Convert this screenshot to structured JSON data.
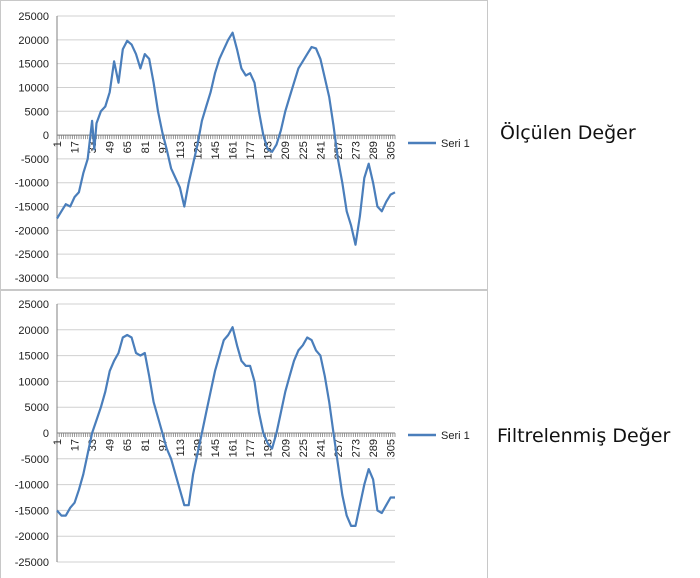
{
  "labels": {
    "top": "Ölçülen Değer",
    "bottom": "Filtrelenmiş Değer"
  },
  "colors": {
    "series": "#4a7ebb",
    "grid": "#d0d0d0",
    "axis": "#808080",
    "frame": "#c8c8c8"
  },
  "chart_data": [
    {
      "type": "line",
      "title": "",
      "xlabel": "",
      "ylabel": "",
      "ylim": [
        -30000,
        25000
      ],
      "y_ticks": [
        "25000",
        "20000",
        "15000",
        "10000",
        "5000",
        "0",
        "-5000",
        "-10000",
        "-15000",
        "-20000",
        "-25000",
        "-30000"
      ],
      "x_tick_labels": [
        "1",
        "17",
        "33",
        "49",
        "65",
        "81",
        "97",
        "113",
        "129",
        "145",
        "161",
        "177",
        "193",
        "209",
        "225",
        "241",
        "257",
        "273",
        "289",
        "305"
      ],
      "grid": true,
      "legend_position": "right",
      "series": [
        {
          "name": "Seri 1",
          "x": [
            1,
            5,
            9,
            13,
            17,
            21,
            25,
            29,
            33,
            35,
            37,
            41,
            45,
            49,
            53,
            57,
            61,
            65,
            69,
            73,
            77,
            81,
            85,
            89,
            93,
            97,
            101,
            105,
            109,
            113,
            117,
            121,
            125,
            129,
            133,
            137,
            141,
            145,
            149,
            153,
            157,
            161,
            165,
            169,
            173,
            177,
            181,
            185,
            189,
            193,
            197,
            201,
            205,
            209,
            213,
            217,
            221,
            225,
            229,
            233,
            237,
            241,
            245,
            249,
            253,
            257,
            261,
            265,
            269,
            273,
            277,
            281,
            285,
            289,
            293,
            297,
            301,
            305,
            309
          ],
          "values": [
            -17500,
            -16000,
            -14500,
            -15000,
            -13000,
            -12000,
            -8000,
            -5000,
            3000,
            -3000,
            2500,
            5000,
            6000,
            9000,
            15500,
            11000,
            18000,
            19800,
            19000,
            17000,
            14000,
            17000,
            16000,
            11000,
            5000,
            500,
            -3000,
            -7000,
            -9000,
            -11000,
            -15000,
            -10000,
            -6000,
            -2000,
            3000,
            6000,
            9000,
            13000,
            16000,
            18000,
            20000,
            21500,
            18000,
            14000,
            12500,
            13000,
            11000,
            5000,
            0,
            -3000,
            -3500,
            -2000,
            1000,
            5000,
            8000,
            11000,
            14000,
            15500,
            17000,
            18500,
            18200,
            16000,
            12000,
            8000,
            2000,
            -5000,
            -10000,
            -16000,
            -19000,
            -23000,
            -17000,
            -9000,
            -6000,
            -10000,
            -15000,
            -16000,
            -14000,
            -12500,
            -12000
          ]
        }
      ]
    },
    {
      "type": "line",
      "title": "",
      "xlabel": "",
      "ylabel": "",
      "ylim": [
        -25000,
        25000
      ],
      "y_ticks": [
        "25000",
        "20000",
        "15000",
        "10000",
        "5000",
        "0",
        "-5000",
        "-10000",
        "-15000",
        "-20000",
        "-25000"
      ],
      "x_tick_labels": [
        "1",
        "17",
        "33",
        "49",
        "65",
        "81",
        "97",
        "113",
        "129",
        "145",
        "161",
        "177",
        "193",
        "209",
        "225",
        "241",
        "257",
        "273",
        "289",
        "305"
      ],
      "grid": true,
      "legend_position": "right",
      "series": [
        {
          "name": "Seri 1",
          "x": [
            1,
            5,
            9,
            13,
            17,
            21,
            25,
            29,
            33,
            37,
            41,
            45,
            49,
            53,
            57,
            61,
            65,
            69,
            73,
            77,
            81,
            85,
            89,
            93,
            97,
            101,
            105,
            109,
            113,
            117,
            121,
            125,
            129,
            133,
            137,
            141,
            145,
            149,
            153,
            157,
            161,
            165,
            169,
            173,
            177,
            181,
            185,
            189,
            193,
            197,
            201,
            205,
            209,
            213,
            217,
            221,
            225,
            229,
            233,
            237,
            241,
            245,
            249,
            253,
            257,
            261,
            265,
            269,
            273,
            277,
            281,
            285,
            289,
            293,
            297,
            301,
            305,
            309
          ],
          "values": [
            -15000,
            -16000,
            -16000,
            -14500,
            -13500,
            -11000,
            -8000,
            -4000,
            0,
            2500,
            5000,
            8000,
            12000,
            14000,
            15500,
            18500,
            19000,
            18500,
            15500,
            15000,
            15500,
            11000,
            6000,
            3000,
            0,
            -3000,
            -5000,
            -8000,
            -11000,
            -14000,
            -14000,
            -8000,
            -4000,
            0,
            4000,
            8000,
            12000,
            15000,
            18000,
            19000,
            20500,
            17000,
            14000,
            13000,
            13000,
            10000,
            4000,
            0,
            -2000,
            -3000,
            0,
            4000,
            8000,
            11000,
            14000,
            16000,
            17000,
            18500,
            18000,
            16000,
            15000,
            11000,
            6000,
            0,
            -6000,
            -12000,
            -16000,
            -18000,
            -18000,
            -14000,
            -10000,
            -7000,
            -9000,
            -15000,
            -15500,
            -14000,
            -12500,
            -12500
          ]
        }
      ]
    }
  ]
}
